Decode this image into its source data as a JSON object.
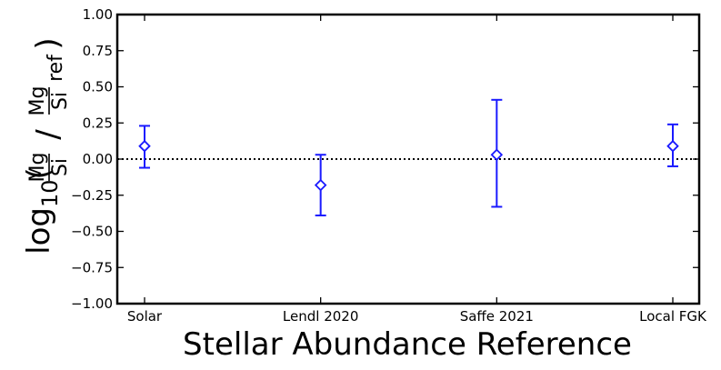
{
  "chart_data": {
    "type": "scatter",
    "xlabel": "Stellar Abundance Reference",
    "ylabel": {
      "prefix": "log",
      "subscript": "10",
      "num1": "Mg",
      "den1": "Si",
      "num2": "Mg",
      "den2": "Si",
      "ref": "ref"
    },
    "categories": [
      "Solar",
      "Lendl 2020",
      "Saffe 2021",
      "Local FGK"
    ],
    "ylim": [
      -1.0,
      1.0
    ],
    "yticks": [
      -1.0,
      -0.75,
      -0.5,
      -0.25,
      0.0,
      0.25,
      0.5,
      0.75,
      1.0
    ],
    "ytick_labels": [
      "−1.00",
      "−0.75",
      "−0.50",
      "−0.25",
      "0.00",
      "0.25",
      "0.50",
      "0.75",
      "1.00"
    ],
    "points": [
      {
        "category": "Solar",
        "y": 0.09,
        "err_low": 0.15,
        "err_high": 0.14
      },
      {
        "category": "Lendl 2020",
        "y": -0.18,
        "err_low": 0.21,
        "err_high": 0.21
      },
      {
        "category": "Saffe 2021",
        "y": 0.03,
        "err_low": 0.36,
        "err_high": 0.38
      },
      {
        "category": "Local FGK",
        "y": 0.09,
        "err_low": 0.14,
        "err_high": 0.15
      }
    ],
    "reference_line": {
      "y": 0.0,
      "style": "dotted",
      "color": "#000000"
    },
    "marker": "diamond-open",
    "series_color": "#1a1aff",
    "grid": false
  }
}
